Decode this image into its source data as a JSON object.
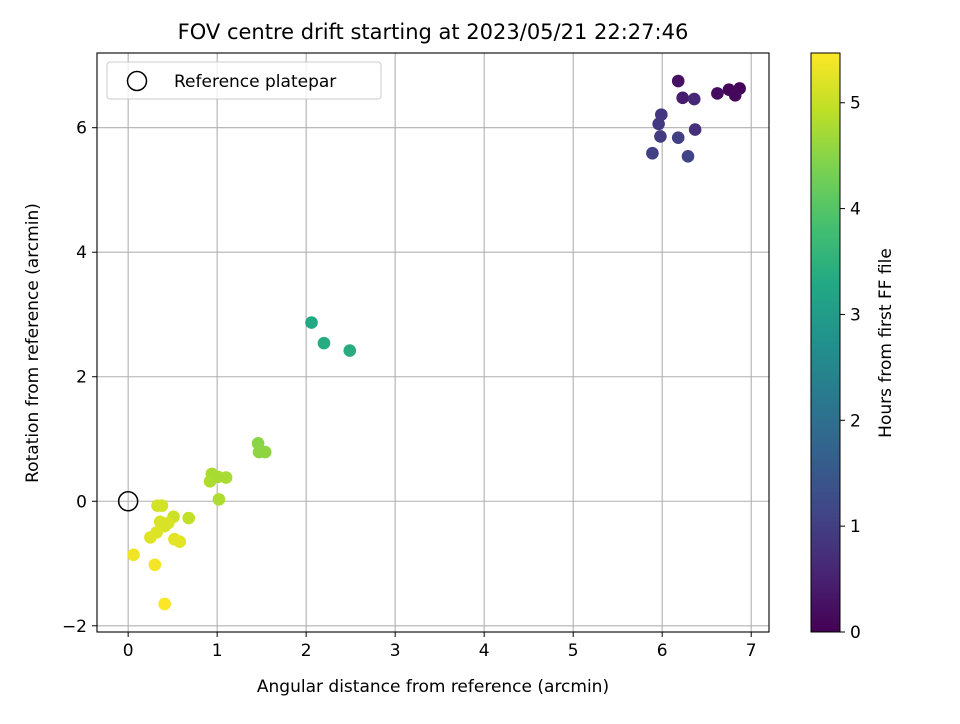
{
  "chart_data": {
    "type": "scatter",
    "title": "FOV centre drift starting at 2023/05/21 22:27:46",
    "xlabel": "Angular distance from reference (arcmin)",
    "ylabel": "Rotation from reference (arcmin)",
    "xlim": [
      -0.35,
      7.2
    ],
    "ylim": [
      -2.1,
      7.2
    ],
    "xticks": [
      0,
      1,
      2,
      3,
      4,
      5,
      6,
      7
    ],
    "xtick_labels": [
      "0",
      "1",
      "2",
      "3",
      "4",
      "5",
      "6",
      "7"
    ],
    "yticks": [
      -2,
      0,
      2,
      4,
      6
    ],
    "ytick_labels": [
      "−2",
      "0",
      "2",
      "4",
      "6"
    ],
    "grid": true,
    "legend": {
      "placement": "upper-left",
      "entries": [
        {
          "label": "Reference platepar",
          "marker": "open-circle",
          "color": "#000000"
        }
      ]
    },
    "reference_point": {
      "x": 0,
      "y": 0
    },
    "colorbar": {
      "label": "Hours from first FF file",
      "colormap": "viridis",
      "range": [
        0,
        5.47
      ],
      "ticks": [
        0,
        1,
        2,
        3,
        4,
        5
      ],
      "tick_labels": [
        "0",
        "1",
        "2",
        "3",
        "4",
        "5"
      ]
    },
    "points": [
      {
        "x": 6.87,
        "y": 6.63,
        "h": 0.05
      },
      {
        "x": 6.75,
        "y": 6.61,
        "h": 0.08
      },
      {
        "x": 6.82,
        "y": 6.52,
        "h": 0.12
      },
      {
        "x": 6.62,
        "y": 6.55,
        "h": 0.18
      },
      {
        "x": 6.18,
        "y": 6.75,
        "h": 0.25
      },
      {
        "x": 6.23,
        "y": 6.48,
        "h": 0.45
      },
      {
        "x": 6.36,
        "y": 6.46,
        "h": 0.6
      },
      {
        "x": 6.37,
        "y": 5.97,
        "h": 0.75
      },
      {
        "x": 5.99,
        "y": 6.21,
        "h": 0.85
      },
      {
        "x": 5.96,
        "y": 6.06,
        "h": 0.9
      },
      {
        "x": 5.98,
        "y": 5.86,
        "h": 0.95
      },
      {
        "x": 6.18,
        "y": 5.84,
        "h": 1.0
      },
      {
        "x": 5.89,
        "y": 5.59,
        "h": 1.05
      },
      {
        "x": 6.29,
        "y": 5.54,
        "h": 1.1
      },
      {
        "x": 2.06,
        "y": 2.87,
        "h": 3.3
      },
      {
        "x": 2.2,
        "y": 2.54,
        "h": 3.35
      },
      {
        "x": 2.49,
        "y": 2.42,
        "h": 3.4
      },
      {
        "x": 1.46,
        "y": 0.93,
        "h": 4.5
      },
      {
        "x": 1.47,
        "y": 0.79,
        "h": 4.55
      },
      {
        "x": 1.54,
        "y": 0.79,
        "h": 4.55
      },
      {
        "x": 0.94,
        "y": 0.44,
        "h": 4.75
      },
      {
        "x": 1.1,
        "y": 0.38,
        "h": 4.75
      },
      {
        "x": 0.92,
        "y": 0.32,
        "h": 4.8
      },
      {
        "x": 1.01,
        "y": 0.39,
        "h": 4.75
      },
      {
        "x": 1.02,
        "y": 0.03,
        "h": 4.8
      },
      {
        "x": 0.68,
        "y": -0.27,
        "h": 4.95
      },
      {
        "x": 0.51,
        "y": -0.25,
        "h": 5.05
      },
      {
        "x": 0.33,
        "y": -0.07,
        "h": 5.1
      },
      {
        "x": 0.38,
        "y": -0.07,
        "h": 5.1
      },
      {
        "x": 0.36,
        "y": -0.33,
        "h": 5.15
      },
      {
        "x": 0.45,
        "y": -0.35,
        "h": 5.15
      },
      {
        "x": 0.41,
        "y": -0.4,
        "h": 5.15
      },
      {
        "x": 0.32,
        "y": -0.5,
        "h": 5.2
      },
      {
        "x": 0.25,
        "y": -0.58,
        "h": 5.2
      },
      {
        "x": 0.52,
        "y": -0.61,
        "h": 5.25
      },
      {
        "x": 0.58,
        "y": -0.65,
        "h": 5.25
      },
      {
        "x": 0.06,
        "y": -0.86,
        "h": 5.35
      },
      {
        "x": 0.3,
        "y": -1.02,
        "h": 5.4
      },
      {
        "x": 0.41,
        "y": -1.65,
        "h": 5.45
      }
    ]
  }
}
